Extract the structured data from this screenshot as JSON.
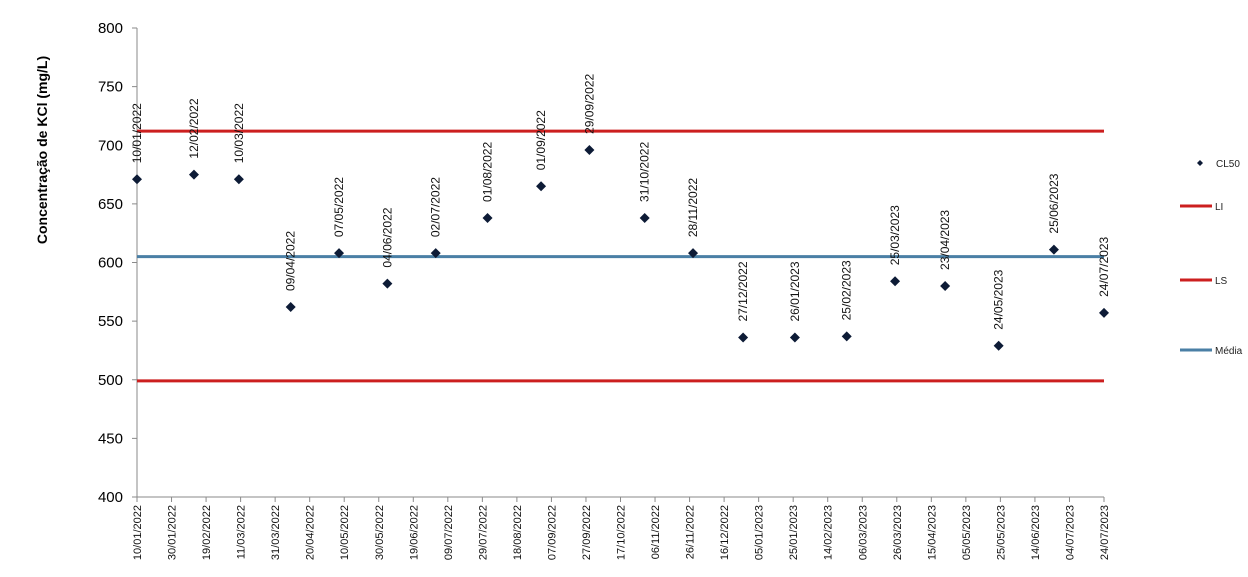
{
  "chart_data": {
    "type": "scatter",
    "ylabel": "Concentração de KCl (mg/L)",
    "ylim": [
      400,
      800
    ],
    "y_ticks": [
      400,
      450,
      500,
      550,
      600,
      650,
      700,
      750,
      800
    ],
    "x_tick_labels": [
      "10/01/2022",
      "30/01/2022",
      "19/02/2022",
      "11/03/2022",
      "31/03/2022",
      "20/04/2022",
      "10/05/2022",
      "30/05/2022",
      "19/06/2022",
      "09/07/2022",
      "29/07/2022",
      "18/08/2022",
      "07/09/2022",
      "27/09/2022",
      "17/10/2022",
      "06/11/2022",
      "26/11/2022",
      "16/12/2022",
      "05/01/2023",
      "25/01/2023",
      "14/02/2023",
      "06/03/2023",
      "26/03/2023",
      "15/04/2023",
      "05/05/2023",
      "25/05/2023",
      "14/06/2023",
      "04/07/2023",
      "24/07/2023"
    ],
    "grid": false,
    "legend_position": "right",
    "series": [
      {
        "name": "CL50",
        "marker": "diamond",
        "color": "#0d1b36",
        "points": [
          {
            "x": "10/01/2022",
            "y": 671,
            "label": "10/01/2022"
          },
          {
            "x": "12/02/2022",
            "y": 675,
            "label": "12/02/2022"
          },
          {
            "x": "10/03/2022",
            "y": 671,
            "label": "10/03/2022"
          },
          {
            "x": "09/04/2022",
            "y": 562,
            "label": "09/04/2022"
          },
          {
            "x": "07/05/2022",
            "y": 608,
            "label": "07/05/2022"
          },
          {
            "x": "04/06/2022",
            "y": 582,
            "label": "04/06/2022"
          },
          {
            "x": "02/07/2022",
            "y": 608,
            "label": "02/07/2022"
          },
          {
            "x": "01/08/2022",
            "y": 638,
            "label": "01/08/2022"
          },
          {
            "x": "01/09/2022",
            "y": 665,
            "label": "01/09/2022"
          },
          {
            "x": "29/09/2022",
            "y": 696,
            "label": "29/09/2022"
          },
          {
            "x": "31/10/2022",
            "y": 638,
            "label": "31/10/2022"
          },
          {
            "x": "28/11/2022",
            "y": 608,
            "label": "28/11/2022"
          },
          {
            "x": "27/12/2022",
            "y": 536,
            "label": "27/12/2022"
          },
          {
            "x": "26/01/2023",
            "y": 536,
            "label": "26/01/2023"
          },
          {
            "x": "25/02/2023",
            "y": 537,
            "label": "25/02/2023"
          },
          {
            "x": "25/03/2023",
            "y": 584,
            "label": "25/03/2023"
          },
          {
            "x": "23/04/2023",
            "y": 580,
            "label": "23/04/2023"
          },
          {
            "x": "24/05/2023",
            "y": 529,
            "label": "24/05/2023"
          },
          {
            "x": "25/06/2023",
            "y": 611,
            "label": "25/06/2023"
          },
          {
            "x": "24/07/2023",
            "y": 557,
            "label": "24/07/2023"
          }
        ]
      },
      {
        "name": "LI",
        "type": "hline",
        "y": 712,
        "color": "#cc1f1f"
      },
      {
        "name": "LS",
        "type": "hline",
        "y": 499,
        "color": "#cc1f1f"
      },
      {
        "name": "Média",
        "type": "hline",
        "y": 605,
        "color": "#4a7fa5"
      }
    ]
  }
}
